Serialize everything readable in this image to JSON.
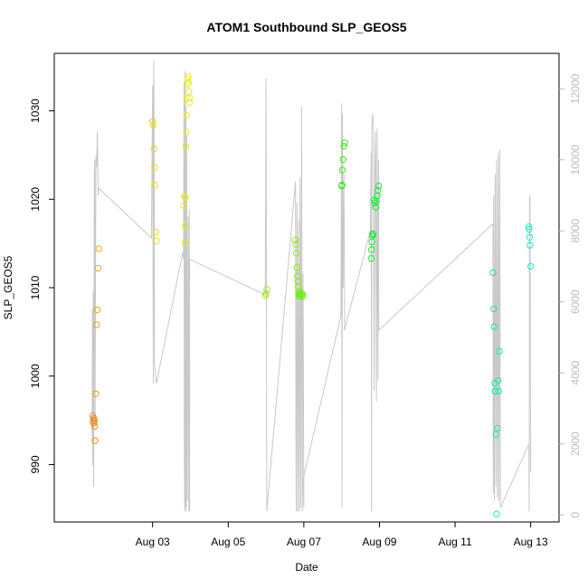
{
  "chart_data": {
    "type": "scatter",
    "title": "ATOM1 Southbound SLP_GEOS5",
    "xlabel": "Date",
    "ylabel": "SLP_GEOS5",
    "xlim": [
      0.4,
      13.75
    ],
    "ylim": [
      983.5,
      1036.5
    ],
    "y2lim": [
      -200,
      13000
    ],
    "grid": false,
    "legend": "none",
    "x_ticks": [
      {
        "value": 3,
        "label": "Aug 03"
      },
      {
        "value": 5,
        "label": "Aug 05"
      },
      {
        "value": 7,
        "label": "Aug 07"
      },
      {
        "value": 9,
        "label": "Aug 09"
      },
      {
        "value": 11,
        "label": "Aug 11"
      },
      {
        "value": 13,
        "label": "Aug 13"
      }
    ],
    "y_ticks": [
      990,
      1000,
      1010,
      1020,
      1030
    ],
    "y2_ticks": [
      0,
      2000,
      4000,
      6000,
      8000,
      10000,
      12000
    ],
    "series": [
      {
        "kind": "points",
        "values": [
          {
            "x": 1.42,
            "y": 995.5,
            "color": "#f28c1a"
          },
          {
            "x": 1.43,
            "y": 995.0,
            "color": "#f28c1a"
          },
          {
            "x": 1.44,
            "y": 994.7,
            "color": "#f28c1a"
          },
          {
            "x": 1.45,
            "y": 995.2,
            "color": "#f28c1a"
          },
          {
            "x": 1.46,
            "y": 994.9,
            "color": "#f28c1a"
          },
          {
            "x": 1.47,
            "y": 994.3,
            "color": "#f28c1a"
          },
          {
            "x": 1.48,
            "y": 992.7,
            "color": "#f28c1a"
          },
          {
            "x": 1.5,
            "y": 998.0,
            "color": "#f29a1a"
          },
          {
            "x": 1.52,
            "y": 1005.8,
            "color": "#f2a21a"
          },
          {
            "x": 1.54,
            "y": 1007.5,
            "color": "#f2a61a"
          },
          {
            "x": 1.56,
            "y": 1012.2,
            "color": "#f2aa1a"
          },
          {
            "x": 1.58,
            "y": 1014.4,
            "color": "#f2ae1a"
          },
          {
            "x": 3.0,
            "y": 1028.8,
            "color": "#e6d81a"
          },
          {
            "x": 3.02,
            "y": 1028.4,
            "color": "#e6d81a"
          },
          {
            "x": 3.04,
            "y": 1025.7,
            "color": "#e6dc1a"
          },
          {
            "x": 3.05,
            "y": 1023.6,
            "color": "#e6dc1a"
          },
          {
            "x": 3.06,
            "y": 1021.6,
            "color": "#e6dc1a"
          },
          {
            "x": 3.08,
            "y": 1016.3,
            "color": "#e6dc1a"
          },
          {
            "x": 3.1,
            "y": 1015.3,
            "color": "#e6dc1a"
          },
          {
            "x": 3.82,
            "y": 1019.3,
            "color": "#e8ec1a"
          },
          {
            "x": 3.84,
            "y": 1020.3,
            "color": "#e8ec1a"
          },
          {
            "x": 3.85,
            "y": 1015.1,
            "color": "#e8ec1a"
          },
          {
            "x": 3.86,
            "y": 1017.0,
            "color": "#e8ec1a"
          },
          {
            "x": 3.87,
            "y": 1020.2,
            "color": "#e8ec1a"
          },
          {
            "x": 3.88,
            "y": 1026.0,
            "color": "#e8ec1a"
          },
          {
            "x": 3.89,
            "y": 1027.6,
            "color": "#e8ec1a"
          },
          {
            "x": 3.9,
            "y": 1029.5,
            "color": "#e8ee1a"
          },
          {
            "x": 3.91,
            "y": 1031.4,
            "color": "#e8ee1a"
          },
          {
            "x": 3.92,
            "y": 1033.0,
            "color": "#e8ee1a"
          },
          {
            "x": 3.93,
            "y": 1033.6,
            "color": "#e8ee1a"
          },
          {
            "x": 3.94,
            "y": 1033.9,
            "color": "#e8ee1a"
          },
          {
            "x": 3.95,
            "y": 1033.2,
            "color": "#e8ee1a"
          },
          {
            "x": 3.96,
            "y": 1032.2,
            "color": "#e8ee1a"
          },
          {
            "x": 3.97,
            "y": 1030.9,
            "color": "#e8ee1a"
          },
          {
            "x": 3.98,
            "y": 1031.5,
            "color": "#e8ee1a"
          },
          {
            "x": 5.98,
            "y": 1009.1,
            "color": "#a8ec1a"
          },
          {
            "x": 6.0,
            "y": 1009.3,
            "color": "#a8ec1a"
          },
          {
            "x": 6.02,
            "y": 1009.8,
            "color": "#a8ec1a"
          },
          {
            "x": 6.77,
            "y": 1015.4,
            "color": "#8cec1a"
          },
          {
            "x": 6.79,
            "y": 1014.9,
            "color": "#8cec1a"
          },
          {
            "x": 6.8,
            "y": 1013.9,
            "color": "#8cec1a"
          },
          {
            "x": 6.82,
            "y": 1012.3,
            "color": "#86ec1a"
          },
          {
            "x": 6.83,
            "y": 1011.3,
            "color": "#86ec1a"
          },
          {
            "x": 6.84,
            "y": 1010.7,
            "color": "#86ec1a"
          },
          {
            "x": 6.85,
            "y": 1010.1,
            "color": "#80ec1a"
          },
          {
            "x": 6.86,
            "y": 1009.4,
            "color": "#80ec1a"
          },
          {
            "x": 6.87,
            "y": 1009.0,
            "color": "#7aec1a"
          },
          {
            "x": 6.88,
            "y": 1009.2,
            "color": "#74ec1a"
          },
          {
            "x": 6.9,
            "y": 1009.5,
            "color": "#6eec1a"
          },
          {
            "x": 6.92,
            "y": 1009.1,
            "color": "#6eec1a"
          },
          {
            "x": 6.94,
            "y": 1009.3,
            "color": "#6eec1a"
          },
          {
            "x": 6.96,
            "y": 1009.0,
            "color": "#6eec1a"
          },
          {
            "x": 6.98,
            "y": 1009.2,
            "color": "#6eec1a"
          },
          {
            "x": 8.0,
            "y": 1021.5,
            "color": "#3aec1a"
          },
          {
            "x": 8.01,
            "y": 1021.6,
            "color": "#3aec1a"
          },
          {
            "x": 8.02,
            "y": 1023.3,
            "color": "#3aec1a"
          },
          {
            "x": 8.04,
            "y": 1024.5,
            "color": "#3aec1a"
          },
          {
            "x": 8.06,
            "y": 1026.0,
            "color": "#3aec1a"
          },
          {
            "x": 8.08,
            "y": 1026.4,
            "color": "#3aec1a"
          },
          {
            "x": 8.78,
            "y": 1013.3,
            "color": "#1aec2e"
          },
          {
            "x": 8.79,
            "y": 1014.3,
            "color": "#1aec2e"
          },
          {
            "x": 8.8,
            "y": 1015.2,
            "color": "#1aec2e"
          },
          {
            "x": 8.81,
            "y": 1015.8,
            "color": "#1aec30"
          },
          {
            "x": 8.82,
            "y": 1016.1,
            "color": "#1aec30"
          },
          {
            "x": 8.83,
            "y": 1016.0,
            "color": "#1aec30"
          },
          {
            "x": 8.86,
            "y": 1019.9,
            "color": "#1aec34"
          },
          {
            "x": 8.88,
            "y": 1019.6,
            "color": "#1aec34"
          },
          {
            "x": 8.9,
            "y": 1019.1,
            "color": "#1aec38"
          },
          {
            "x": 8.92,
            "y": 1019.8,
            "color": "#1aec38"
          },
          {
            "x": 8.94,
            "y": 1020.4,
            "color": "#1aec38"
          },
          {
            "x": 8.96,
            "y": 1021.0,
            "color": "#1aec3c"
          },
          {
            "x": 8.98,
            "y": 1021.5,
            "color": "#1aec3c"
          },
          {
            "x": 12.0,
            "y": 1011.7,
            "color": "#1aeca2"
          },
          {
            "x": 12.02,
            "y": 1007.6,
            "color": "#1aeca4"
          },
          {
            "x": 12.03,
            "y": 1005.6,
            "color": "#1aeca4"
          },
          {
            "x": 12.05,
            "y": 999.2,
            "color": "#1aeca6"
          },
          {
            "x": 12.06,
            "y": 998.3,
            "color": "#1aeca6"
          },
          {
            "x": 12.08,
            "y": 993.4,
            "color": "#1aeca8"
          },
          {
            "x": 12.1,
            "y": 984.4,
            "color": "#1aecaa"
          },
          {
            "x": 12.12,
            "y": 994.1,
            "color": "#1aecaa"
          },
          {
            "x": 12.14,
            "y": 999.5,
            "color": "#1aecac"
          },
          {
            "x": 12.15,
            "y": 998.3,
            "color": "#1aecac"
          },
          {
            "x": 12.17,
            "y": 1002.8,
            "color": "#1aecae"
          },
          {
            "x": 12.95,
            "y": 1016.9,
            "color": "#1aecc8"
          },
          {
            "x": 12.96,
            "y": 1016.6,
            "color": "#1aecc8"
          },
          {
            "x": 12.97,
            "y": 1015.7,
            "color": "#1aecca"
          },
          {
            "x": 12.98,
            "y": 1014.8,
            "color": "#1aecca"
          },
          {
            "x": 13.0,
            "y": 1012.4,
            "color": "#1aeccc"
          }
        ]
      },
      {
        "kind": "line",
        "axis": "right",
        "color": "#c8c8c8",
        "values": [
          [
            1.4,
            2200
          ],
          [
            1.41,
            5800
          ],
          [
            1.42,
            1400
          ],
          [
            1.43,
            6300
          ],
          [
            1.44,
            800
          ],
          [
            1.45,
            3500
          ],
          [
            1.46,
            9500
          ],
          [
            1.47,
            10000
          ],
          [
            1.48,
            2600
          ],
          [
            1.5,
            10100
          ],
          [
            1.52,
            9800
          ],
          [
            1.54,
            10800
          ],
          [
            1.56,
            9000
          ],
          [
            1.58,
            9200
          ],
          [
            2.97,
            7800
          ],
          [
            3.0,
            12100
          ],
          [
            3.02,
            3700
          ],
          [
            3.03,
            12800
          ],
          [
            3.04,
            11700
          ],
          [
            3.05,
            4300
          ],
          [
            3.1,
            3700
          ],
          [
            3.8,
            7400
          ],
          [
            3.82,
            7200
          ],
          [
            3.83,
            12200
          ],
          [
            3.84,
            1500
          ],
          [
            3.85,
            100
          ],
          [
            3.86,
            12500
          ],
          [
            3.87,
            200
          ],
          [
            3.88,
            11500
          ],
          [
            3.89,
            100
          ],
          [
            3.9,
            10700
          ],
          [
            3.92,
            400
          ],
          [
            3.94,
            8400
          ],
          [
            3.96,
            100
          ],
          [
            3.97,
            8600
          ],
          [
            3.98,
            100
          ],
          [
            3.98,
            7200
          ],
          [
            5.98,
            6200
          ],
          [
            6.0,
            12300
          ],
          [
            6.02,
            100
          ],
          [
            6.78,
            9400
          ],
          [
            6.79,
            2400
          ],
          [
            6.8,
            100
          ],
          [
            6.82,
            8800
          ],
          [
            6.84,
            100
          ],
          [
            6.86,
            8300
          ],
          [
            6.88,
            100
          ],
          [
            6.9,
            9500
          ],
          [
            6.92,
            200
          ],
          [
            6.94,
            11500
          ],
          [
            6.96,
            100
          ],
          [
            6.98,
            6800
          ],
          [
            7.0,
            200
          ],
          [
            6.98,
            1000
          ],
          [
            7.98,
            5600
          ],
          [
            8.0,
            11600
          ],
          [
            8.01,
            200
          ],
          [
            8.02,
            11300
          ],
          [
            8.04,
            6400
          ],
          [
            8.06,
            9600
          ],
          [
            8.08,
            5200
          ],
          [
            8.12,
            5400
          ],
          [
            8.76,
            8000
          ],
          [
            8.78,
            10200
          ],
          [
            8.79,
            100
          ],
          [
            8.8,
            11000
          ],
          [
            8.82,
            11300
          ],
          [
            8.84,
            10900
          ],
          [
            8.86,
            3500
          ],
          [
            8.88,
            9700
          ],
          [
            8.9,
            10800
          ],
          [
            8.92,
            3200
          ],
          [
            8.94,
            10900
          ],
          [
            8.96,
            3800
          ],
          [
            8.98,
            10000
          ],
          [
            8.98,
            5200
          ],
          [
            12.0,
            8200
          ],
          [
            12.01,
            600
          ],
          [
            12.02,
            9000
          ],
          [
            12.04,
            400
          ],
          [
            12.06,
            9600
          ],
          [
            12.08,
            800
          ],
          [
            12.1,
            10000
          ],
          [
            12.12,
            500
          ],
          [
            12.14,
            10200
          ],
          [
            12.16,
            400
          ],
          [
            12.18,
            10300
          ],
          [
            12.2,
            200
          ],
          [
            12.95,
            2000
          ],
          [
            12.96,
            100
          ],
          [
            12.97,
            8900
          ],
          [
            12.98,
            9000
          ],
          [
            13.0,
            1200
          ]
        ]
      }
    ]
  }
}
